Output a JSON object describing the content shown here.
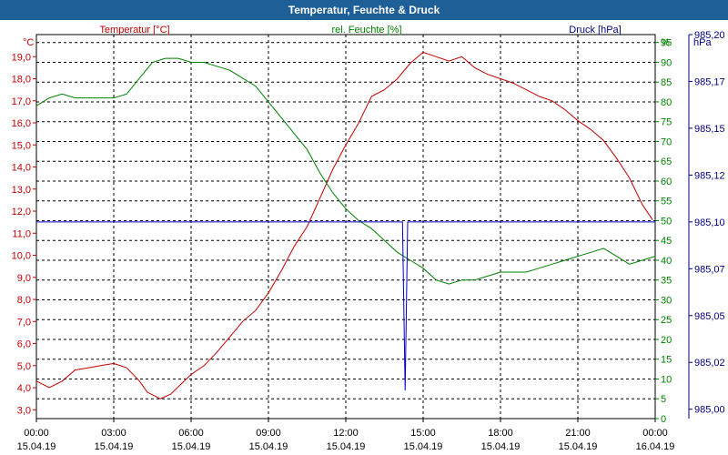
{
  "window": {
    "title": "Temperatur, Feuchte & Druck"
  },
  "chart_data": {
    "type": "line",
    "title": "Temperatur, Feuchte & Druck",
    "grid": true,
    "x": {
      "type": "time",
      "range": [
        "15.04.19 00:00",
        "16.04.19 00:00"
      ],
      "ticks": [
        {
          "time": "00:00",
          "date": "15.04.19"
        },
        {
          "time": "03:00",
          "date": "15.04.19"
        },
        {
          "time": "06:00",
          "date": "15.04.19"
        },
        {
          "time": "09:00",
          "date": "15.04.19"
        },
        {
          "time": "12:00",
          "date": "15.04.19"
        },
        {
          "time": "15:00",
          "date": "15.04.19"
        },
        {
          "time": "18:00",
          "date": "15.04.19"
        },
        {
          "time": "21:00",
          "date": "15.04.19"
        },
        {
          "time": "00:00",
          "date": "16.04.19"
        }
      ]
    },
    "axes": {
      "temperature": {
        "side": "left",
        "unit": "°C",
        "label": "Temperatur [°C]",
        "color": "#c00000",
        "range": [
          2.6,
          20.0
        ],
        "ticks": [
          "3,0",
          "4,0",
          "5,0",
          "6,0",
          "7,0",
          "8,0",
          "9,0",
          "10,0",
          "11,0",
          "12,0",
          "13,0",
          "14,0",
          "15,0",
          "16,0",
          "17,0",
          "18,0",
          "19,0"
        ],
        "tick_values": [
          3,
          4,
          5,
          6,
          7,
          8,
          9,
          10,
          11,
          12,
          13,
          14,
          15,
          16,
          17,
          18,
          19
        ]
      },
      "humidity": {
        "side": "right",
        "unit": "%",
        "label": "rel. Feuchte [%]",
        "color": "#008000",
        "range": [
          0,
          97
        ],
        "ticks": [
          "0",
          "5",
          "10",
          "15",
          "20",
          "25",
          "30",
          "35",
          "40",
          "45",
          "50",
          "55",
          "60",
          "65",
          "70",
          "75",
          "80",
          "85",
          "90",
          "95"
        ],
        "tick_values": [
          0,
          5,
          10,
          15,
          20,
          25,
          30,
          35,
          40,
          45,
          50,
          55,
          60,
          65,
          70,
          75,
          80,
          85,
          90,
          95
        ]
      },
      "pressure": {
        "side": "far-right",
        "unit": "hPa",
        "label": "Druck [hPa]",
        "color": "#000080",
        "range": [
          984.995,
          985.2
        ],
        "ticks": [
          "985,00",
          "985,02",
          "985,05",
          "985,07",
          "985,10",
          "985,12",
          "985,15",
          "985,17",
          "985,20"
        ],
        "tick_values": [
          985.0,
          985.025,
          985.05,
          985.075,
          985.1,
          985.125,
          985.15,
          985.175,
          985.2
        ]
      }
    },
    "series": [
      {
        "name": "Temperatur [°C]",
        "axis": "temperature",
        "color": "#c00000",
        "x_hours": [
          0,
          0.5,
          1,
          1.5,
          2,
          2.5,
          3,
          3.5,
          4,
          4.3,
          4.8,
          5.2,
          6,
          6.5,
          7,
          7.5,
          8,
          8.5,
          9,
          9.5,
          10,
          10.5,
          11,
          11.5,
          12,
          12.5,
          13,
          13.5,
          14,
          14.5,
          15,
          15.5,
          16,
          16.5,
          17,
          17.5,
          18,
          18.5,
          19,
          19.5,
          20,
          20.5,
          21,
          21.5,
          22,
          22.5,
          23,
          23.5,
          23.9
        ],
        "values": [
          4.3,
          4.0,
          4.3,
          4.8,
          4.9,
          5.0,
          5.1,
          4.9,
          4.3,
          3.8,
          3.5,
          3.7,
          4.6,
          5.0,
          5.6,
          6.3,
          7.0,
          7.5,
          8.3,
          9.3,
          10.4,
          11.3,
          12.6,
          13.9,
          15.0,
          16.0,
          17.2,
          17.5,
          18.0,
          18.7,
          19.2,
          19.0,
          18.8,
          19.0,
          18.5,
          18.2,
          18.0,
          17.8,
          17.5,
          17.2,
          17.0,
          16.6,
          16.1,
          15.7,
          15.2,
          14.4,
          13.5,
          12.3,
          11.6
        ]
      },
      {
        "name": "rel. Feuchte [%]",
        "axis": "humidity",
        "color": "#008000",
        "x_hours": [
          0,
          0.5,
          1,
          1.5,
          2,
          2.5,
          3,
          3.5,
          4,
          4.5,
          5,
          5.5,
          6,
          6.5,
          7,
          7.5,
          8,
          8.5,
          9,
          9.5,
          10,
          10.5,
          11,
          11.5,
          12,
          12.5,
          13,
          13.5,
          14,
          14.5,
          15,
          15.5,
          16,
          16.5,
          17,
          17.5,
          18,
          18.5,
          19,
          19.5,
          20,
          20.5,
          21,
          21.5,
          22,
          22.5,
          23,
          23.5,
          24
        ],
        "values": [
          79,
          81,
          82,
          81,
          81,
          81,
          81,
          82,
          86,
          90,
          91,
          91,
          90,
          90,
          89,
          88,
          86,
          84,
          80,
          76,
          72,
          68,
          62,
          57,
          53,
          50,
          48,
          45,
          42,
          40,
          38,
          35,
          34,
          35,
          35,
          36,
          37,
          37,
          37,
          38,
          39,
          40,
          41,
          42,
          43,
          41,
          39,
          40,
          41
        ]
      },
      {
        "name": "Druck [hPa]",
        "axis": "pressure",
        "color": "#0000c0",
        "x_hours": [
          0,
          14.2,
          14.3,
          14.4,
          14.5,
          24
        ],
        "values": [
          985.1,
          985.1,
          985.01,
          985.1,
          985.1,
          985.1
        ]
      }
    ]
  }
}
